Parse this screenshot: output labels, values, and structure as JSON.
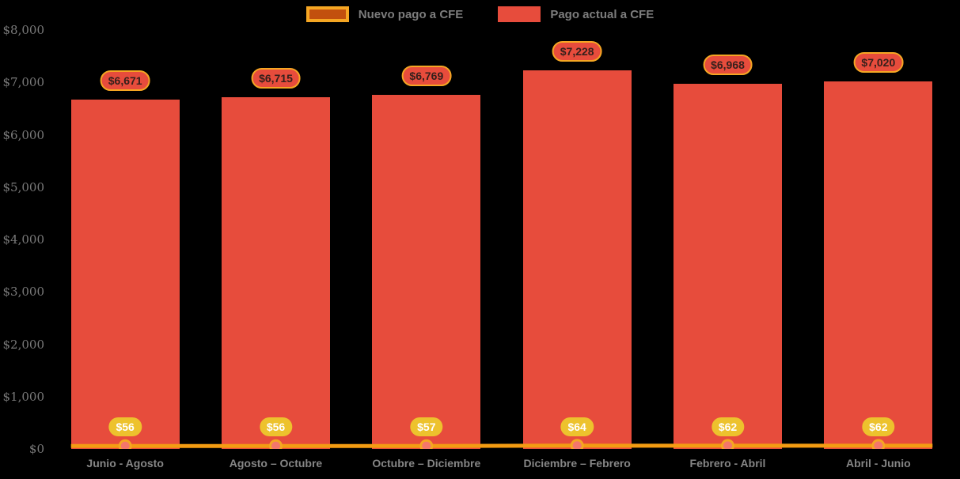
{
  "legend": {
    "items": [
      {
        "label": "Nuevo pago a CFE",
        "swatch_fill": "#c2500e",
        "swatch_border": "#f5a623"
      },
      {
        "label": "Pago actual a CFE",
        "swatch_fill": "#e74c3c",
        "swatch_border": "#e74c3c"
      }
    ]
  },
  "colors": {
    "background": "#000000",
    "bar": "#e74c3c",
    "line": "#f49c12",
    "marker_fill": "#f4766b",
    "marker_ring": "#f5a623",
    "axis_text": "#7a7a7a",
    "badge_top_bg": "#e74c3c",
    "badge_top_border": "#f5a623",
    "badge_bottom_bg": "#edc22d"
  },
  "chart_data": {
    "type": "bar",
    "categories": [
      "Junio - Agosto",
      "Agosto – Octubre",
      "Octubre – Diciembre",
      "Diciembre – Febrero",
      "Febrero - Abril",
      "Abril - Junio"
    ],
    "series": [
      {
        "name": "Pago actual a CFE",
        "type": "bar",
        "color": "#e74c3c",
        "values": [
          6671,
          6715,
          6769,
          7228,
          6968,
          7020
        ],
        "labels": [
          "$6,671",
          "$6,715",
          "$6,769",
          "$7,228",
          "$6,968",
          "$7,020"
        ]
      },
      {
        "name": "Nuevo pago a CFE",
        "type": "line",
        "color": "#f49c12",
        "marker_fill": "#f4766b",
        "marker_ring": "#f5a623",
        "values": [
          56,
          56,
          57,
          64,
          62,
          62
        ],
        "labels": [
          "$56",
          "$56",
          "$57",
          "$64",
          "$62",
          "$62"
        ]
      }
    ],
    "title": "",
    "xlabel": "",
    "ylabel": "",
    "ylim": [
      0,
      8000
    ],
    "yticks": [
      {
        "value": 8000,
        "label": "$8,000"
      },
      {
        "value": 7000,
        "label": "$7,000"
      },
      {
        "value": 6000,
        "label": "$6,000"
      },
      {
        "value": 5000,
        "label": "$5,000"
      },
      {
        "value": 4000,
        "label": "$4,000"
      },
      {
        "value": 3000,
        "label": "$3,000"
      },
      {
        "value": 2000,
        "label": "$2,000"
      },
      {
        "value": 1000,
        "label": "$1,000"
      },
      {
        "value": 0,
        "label": "$0"
      }
    ],
    "grid": false,
    "legend_position": "top"
  }
}
